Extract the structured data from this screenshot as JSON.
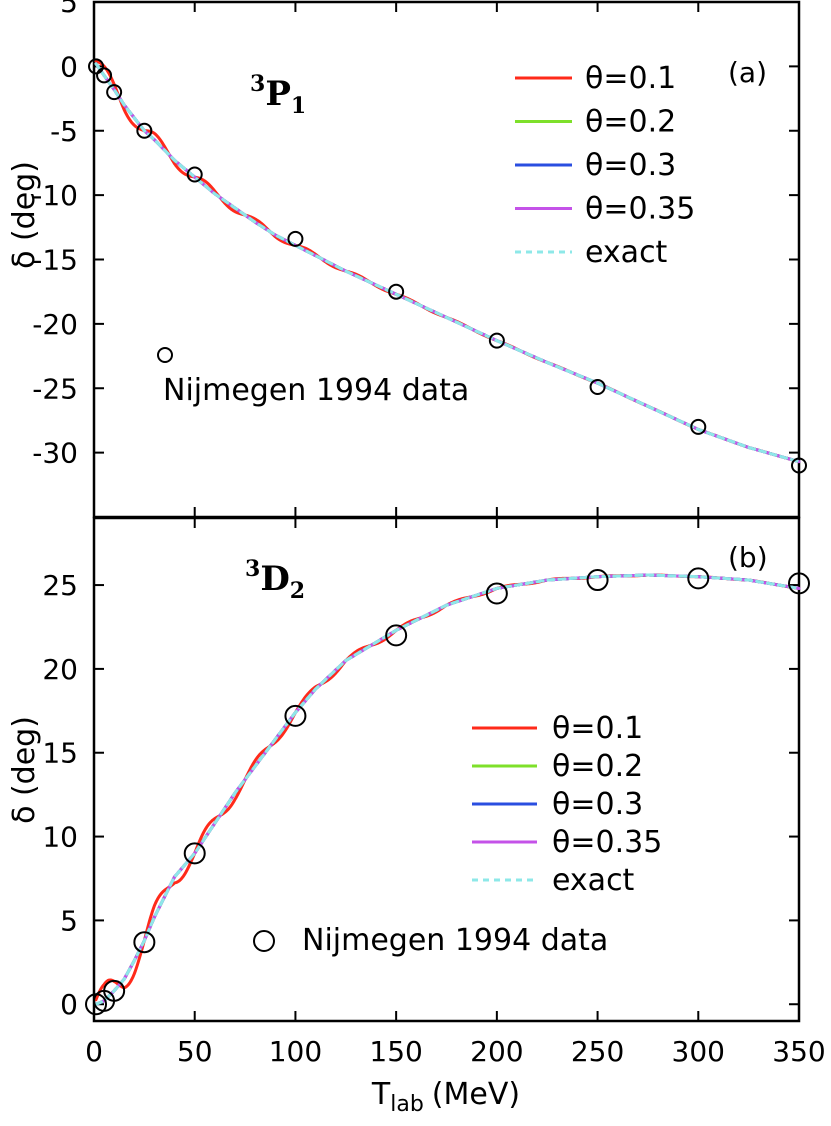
{
  "chart_data": [
    {
      "type": "line",
      "panel": "(a)",
      "wave_label": {
        "sup": "3",
        "main": "P",
        "sub": "1"
      },
      "xlabel": "",
      "ylabel": "δ (deg)",
      "xlim": [
        0,
        350
      ],
      "ylim": [
        -35,
        5
      ],
      "x_ticks": [
        0,
        50,
        100,
        150,
        200,
        250,
        300,
        350
      ],
      "y_ticks": [
        5,
        0,
        -5,
        -10,
        -15,
        -20,
        -25,
        -30
      ],
      "y_tick_labels": [
        "5",
        "0",
        "-5",
        "-10",
        "-15",
        "-20",
        "-25",
        "-30"
      ],
      "grid": false,
      "legend_location": "top-right",
      "series": [
        {
          "name": "θ=0.1",
          "color": "#ff2a1a",
          "style": "solid",
          "oscillation": 1.0,
          "x": [
            1,
            5,
            10,
            15,
            20,
            25,
            30,
            40,
            50,
            60,
            70,
            80,
            90,
            100,
            125,
            150,
            175,
            200,
            225,
            250,
            275,
            300,
            325,
            350
          ],
          "y": [
            0.2,
            -0.7,
            -1.8,
            -3.0,
            -4.0,
            -5.0,
            -5.7,
            -7.3,
            -8.6,
            -9.9,
            -11.0,
            -12.1,
            -13.1,
            -13.9,
            -15.9,
            -17.7,
            -19.5,
            -21.3,
            -23.0,
            -24.6,
            -26.4,
            -28.2,
            -29.6,
            -30.7
          ]
        },
        {
          "name": "θ=0.2",
          "color": "#7ee02a",
          "style": "solid",
          "oscillation": 0.0,
          "x": [
            1,
            5,
            10,
            15,
            20,
            25,
            30,
            40,
            50,
            60,
            70,
            80,
            90,
            100,
            125,
            150,
            175,
            200,
            225,
            250,
            275,
            300,
            325,
            350
          ],
          "y": [
            0.2,
            -0.7,
            -1.8,
            -3.0,
            -4.0,
            -5.0,
            -5.7,
            -7.3,
            -8.6,
            -9.9,
            -11.0,
            -12.1,
            -13.1,
            -13.9,
            -15.9,
            -17.7,
            -19.5,
            -21.3,
            -23.0,
            -24.6,
            -26.4,
            -28.2,
            -29.6,
            -30.7
          ]
        },
        {
          "name": "θ=0.3",
          "color": "#2a4ee0",
          "style": "solid",
          "oscillation": 0.0,
          "x": [
            1,
            5,
            10,
            15,
            20,
            25,
            30,
            40,
            50,
            60,
            70,
            80,
            90,
            100,
            125,
            150,
            175,
            200,
            225,
            250,
            275,
            300,
            325,
            350
          ],
          "y": [
            0.2,
            -0.7,
            -1.8,
            -3.0,
            -4.0,
            -5.0,
            -5.7,
            -7.3,
            -8.6,
            -9.9,
            -11.0,
            -12.1,
            -13.1,
            -13.9,
            -15.9,
            -17.7,
            -19.5,
            -21.3,
            -23.0,
            -24.6,
            -26.4,
            -28.2,
            -29.6,
            -30.7
          ]
        },
        {
          "name": "θ=0.35",
          "color": "#c452e8",
          "style": "solid",
          "oscillation": 0.0,
          "x": [
            1,
            5,
            10,
            15,
            20,
            25,
            30,
            40,
            50,
            60,
            70,
            80,
            90,
            100,
            125,
            150,
            175,
            200,
            225,
            250,
            275,
            300,
            325,
            350
          ],
          "y": [
            0.2,
            -0.7,
            -1.8,
            -3.0,
            -4.0,
            -5.0,
            -5.7,
            -7.3,
            -8.6,
            -9.9,
            -11.0,
            -12.1,
            -13.1,
            -13.9,
            -15.9,
            -17.7,
            -19.5,
            -21.3,
            -23.0,
            -24.6,
            -26.4,
            -28.2,
            -29.6,
            -30.7
          ]
        },
        {
          "name": "exact",
          "color": "#8ee8e8",
          "style": "dashed",
          "oscillation": 0.0,
          "x": [
            1,
            5,
            10,
            15,
            20,
            25,
            30,
            40,
            50,
            60,
            70,
            80,
            90,
            100,
            125,
            150,
            175,
            200,
            225,
            250,
            275,
            300,
            325,
            350
          ],
          "y": [
            0.2,
            -0.7,
            -1.8,
            -3.0,
            -4.0,
            -5.0,
            -5.7,
            -7.3,
            -8.6,
            -9.9,
            -11.0,
            -12.1,
            -13.1,
            -13.9,
            -15.9,
            -17.7,
            -19.5,
            -21.3,
            -23.0,
            -24.6,
            -26.4,
            -28.2,
            -29.6,
            -30.7
          ]
        }
      ],
      "oscillation_amplitude": 0.8,
      "oscillation_period": 25,
      "points": {
        "name": "Nijmegen 1994 data",
        "x": [
          1,
          5,
          10,
          25,
          50,
          100,
          150,
          200,
          250,
          300,
          350
        ],
        "y": [
          0.0,
          -0.7,
          -2.0,
          -5.0,
          -8.4,
          -13.4,
          -17.5,
          -21.3,
          -24.9,
          -28.0,
          -31.0
        ]
      }
    },
    {
      "type": "line",
      "panel": "(b)",
      "wave_label": {
        "sup": "3",
        "main": "D",
        "sub": "2"
      },
      "xlabel": "T",
      "xlabel_sub": "lab",
      "xlabel_unit": "(MeV)",
      "ylabel": "δ (deg)",
      "xlim": [
        0,
        350
      ],
      "ylim": [
        -1,
        29
      ],
      "x_ticks": [
        0,
        50,
        100,
        150,
        200,
        250,
        300,
        350
      ],
      "y_ticks": [
        0,
        5,
        10,
        15,
        20,
        25
      ],
      "y_tick_labels": [
        "0",
        "5",
        "10",
        "15",
        "20",
        "25"
      ],
      "grid": false,
      "legend_location": "center-right",
      "series": [
        {
          "name": "θ=0.1",
          "color": "#ff2a1a",
          "style": "solid",
          "oscillation": 1.0,
          "x": [
            1,
            5,
            10,
            15,
            20,
            25,
            30,
            40,
            50,
            60,
            70,
            80,
            90,
            100,
            110,
            125,
            150,
            175,
            200,
            225,
            250,
            275,
            300,
            325,
            350
          ],
          "y": [
            0.0,
            0.2,
            0.8,
            1.5,
            2.6,
            3.8,
            5.2,
            7.6,
            9.0,
            10.8,
            12.6,
            14.2,
            15.8,
            17.4,
            18.8,
            20.5,
            22.3,
            23.8,
            24.8,
            25.3,
            25.5,
            25.6,
            25.5,
            25.3,
            24.8
          ]
        },
        {
          "name": "θ=0.2",
          "color": "#7ee02a",
          "style": "solid",
          "oscillation": 0.0,
          "x": [
            1,
            5,
            10,
            15,
            20,
            25,
            30,
            40,
            50,
            60,
            70,
            80,
            90,
            100,
            110,
            125,
            150,
            175,
            200,
            225,
            250,
            275,
            300,
            325,
            350
          ],
          "y": [
            0.0,
            0.2,
            0.8,
            1.5,
            2.6,
            3.8,
            5.2,
            7.6,
            9.0,
            10.8,
            12.6,
            14.2,
            15.8,
            17.4,
            18.8,
            20.5,
            22.3,
            23.8,
            24.8,
            25.3,
            25.5,
            25.6,
            25.5,
            25.3,
            24.8
          ]
        },
        {
          "name": "θ=0.3",
          "color": "#2a4ee0",
          "style": "solid",
          "oscillation": 0.0,
          "x": [
            1,
            5,
            10,
            15,
            20,
            25,
            30,
            40,
            50,
            60,
            70,
            80,
            90,
            100,
            110,
            125,
            150,
            175,
            200,
            225,
            250,
            275,
            300,
            325,
            350
          ],
          "y": [
            0.0,
            0.2,
            0.8,
            1.5,
            2.6,
            3.8,
            5.2,
            7.6,
            9.0,
            10.8,
            12.6,
            14.2,
            15.8,
            17.4,
            18.8,
            20.5,
            22.3,
            23.8,
            24.8,
            25.3,
            25.5,
            25.6,
            25.5,
            25.3,
            24.8
          ]
        },
        {
          "name": "θ=0.35",
          "color": "#c452e8",
          "style": "solid",
          "oscillation": 0.0,
          "x": [
            1,
            5,
            10,
            15,
            20,
            25,
            30,
            40,
            50,
            60,
            70,
            80,
            90,
            100,
            110,
            125,
            150,
            175,
            200,
            225,
            250,
            275,
            300,
            325,
            350
          ],
          "y": [
            0.0,
            0.2,
            0.8,
            1.5,
            2.6,
            3.8,
            5.2,
            7.6,
            9.0,
            10.8,
            12.6,
            14.2,
            15.8,
            17.4,
            18.8,
            20.5,
            22.3,
            23.8,
            24.8,
            25.3,
            25.5,
            25.6,
            25.5,
            25.3,
            24.8
          ]
        },
        {
          "name": "exact",
          "color": "#8ee8e8",
          "style": "dashed",
          "oscillation": 0.0,
          "x": [
            1,
            5,
            10,
            15,
            20,
            25,
            30,
            40,
            50,
            60,
            70,
            80,
            90,
            100,
            110,
            125,
            150,
            175,
            200,
            225,
            250,
            275,
            300,
            325,
            350
          ],
          "y": [
            0.0,
            0.2,
            0.8,
            1.5,
            2.6,
            3.8,
            5.2,
            7.6,
            9.0,
            10.8,
            12.6,
            14.2,
            15.8,
            17.4,
            18.8,
            20.5,
            22.3,
            23.8,
            24.8,
            25.3,
            25.5,
            25.6,
            25.5,
            25.3,
            24.8
          ]
        }
      ],
      "oscillation_amplitude": 1.1,
      "oscillation_period": 25,
      "points": {
        "name": "Nijmegen 1994 data",
        "x": [
          1,
          5,
          10,
          25,
          50,
          100,
          150,
          200,
          250,
          300,
          350
        ],
        "y": [
          0.0,
          0.2,
          0.8,
          3.7,
          9.0,
          17.2,
          22.0,
          24.5,
          25.3,
          25.4,
          25.1
        ]
      }
    }
  ]
}
